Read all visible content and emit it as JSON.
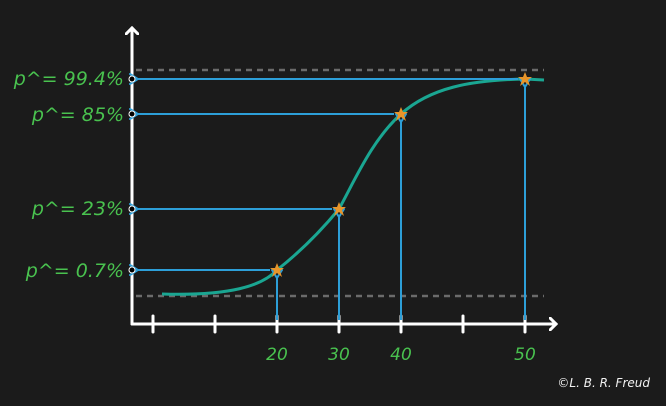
{
  "colors": {
    "background": "#1b1b1b",
    "axis": "#ffffff",
    "curve": "#1aa692",
    "arrows": "#2d9fd8",
    "labels": "#49c24f",
    "stars": "#e8952a",
    "dashed": "#6b6b6b"
  },
  "labels": [
    {
      "id": "p994",
      "text": "p^= 99.4%",
      "value": 0.994
    },
    {
      "id": "p85",
      "text": "p^= 85%",
      "value": 0.85
    },
    {
      "id": "p23",
      "text": "p^= 23%",
      "value": 0.23
    },
    {
      "id": "p07",
      "text": "p^= 0.7%",
      "value": 0.007
    }
  ],
  "x_ticks": [
    "20",
    "30",
    "40",
    "50"
  ],
  "points": [
    {
      "x": 20,
      "p": 0.007
    },
    {
      "x": 30,
      "p": 0.23
    },
    {
      "x": 40,
      "p": 0.85
    },
    {
      "x": 50,
      "p": 0.994
    }
  ],
  "credit": "©L. B. R. Freud"
}
